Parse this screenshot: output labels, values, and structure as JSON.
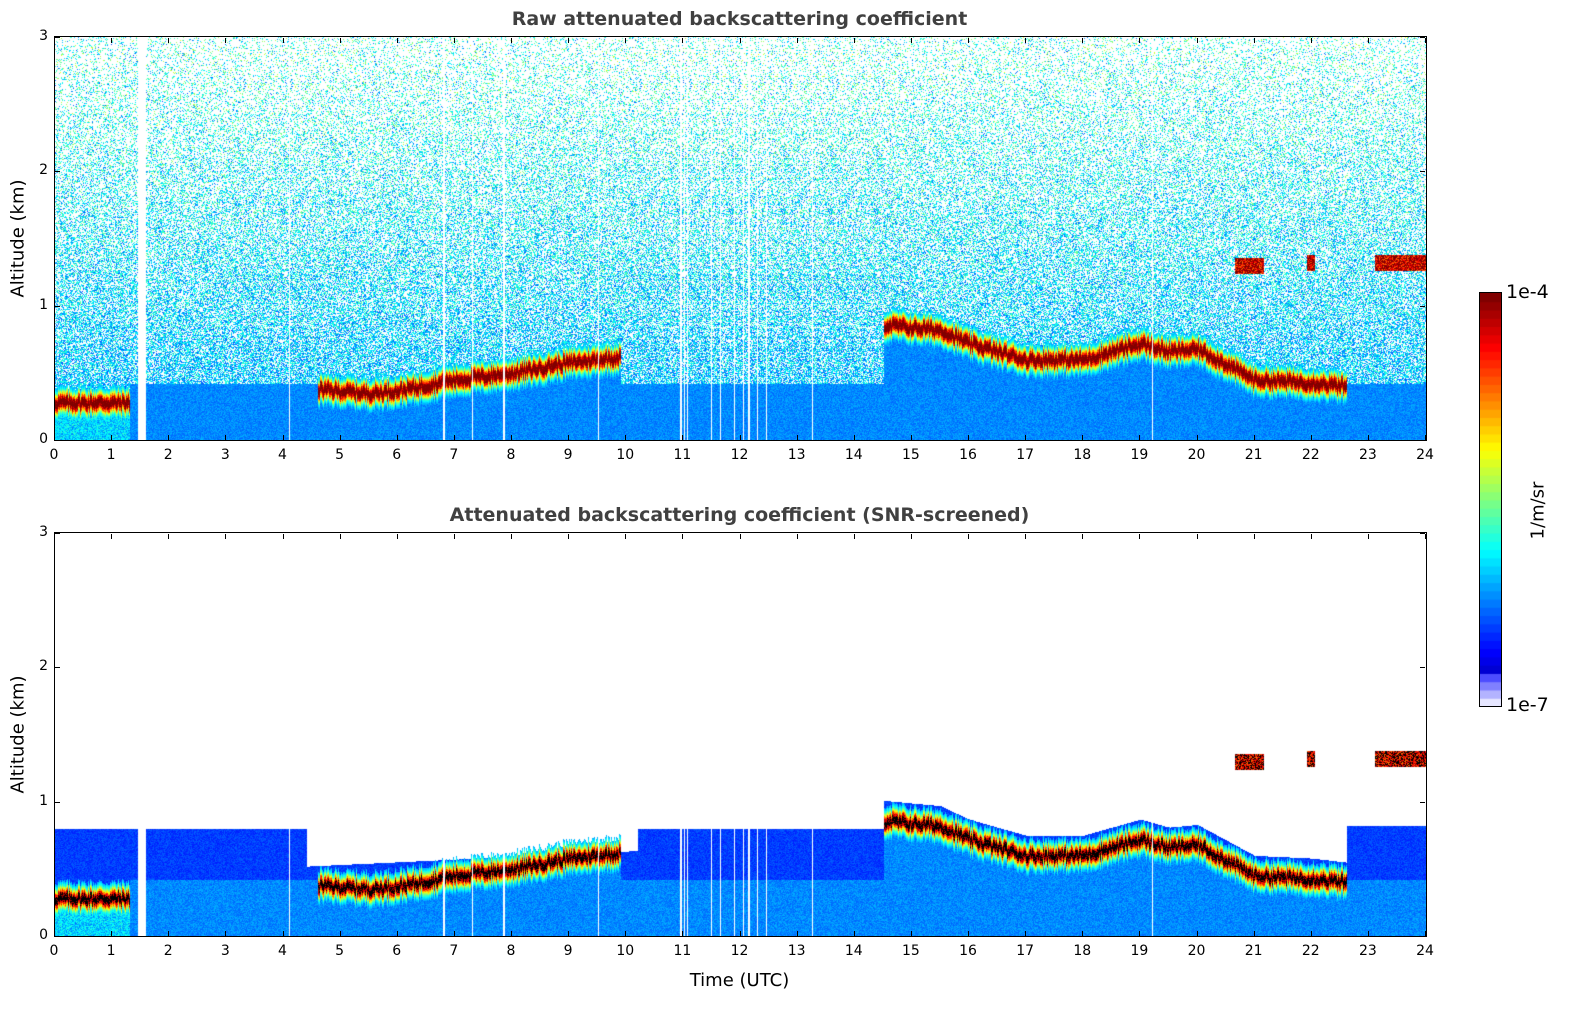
{
  "chart_data": [
    {
      "type": "heatmap",
      "title": "Raw attenuated backscattering coefficient",
      "xlabel": "",
      "ylabel": "Altitude (km)",
      "xlim": [
        0,
        24
      ],
      "ylim": [
        0,
        3
      ],
      "xticks": [
        "0",
        "1",
        "2",
        "3",
        "4",
        "5",
        "6",
        "7",
        "8",
        "9",
        "10",
        "11",
        "12",
        "13",
        "14",
        "15",
        "16",
        "17",
        "18",
        "19",
        "20",
        "21",
        "22",
        "23",
        "24"
      ],
      "yticks": [
        "0",
        "1",
        "2",
        "3"
      ],
      "screened": false
    },
    {
      "type": "heatmap",
      "title": "Attenuated backscattering coefficient (SNR-screened)",
      "xlabel": "Time (UTC)",
      "ylabel": "Altitude (km)",
      "xlim": [
        0,
        24
      ],
      "ylim": [
        0,
        3
      ],
      "xticks": [
        "0",
        "1",
        "2",
        "3",
        "4",
        "5",
        "6",
        "7",
        "8",
        "9",
        "10",
        "11",
        "12",
        "13",
        "14",
        "15",
        "16",
        "17",
        "18",
        "19",
        "20",
        "21",
        "22",
        "23",
        "24"
      ],
      "yticks": [
        "0",
        "1",
        "2",
        "3"
      ],
      "screened": true
    }
  ],
  "colorbar": {
    "label": "1/m/sr",
    "min_label": "1e-7",
    "max_label": "1e-4",
    "scale": "log",
    "colormap": "jet"
  },
  "features": {
    "layer_top_km": [
      [
        0,
        0.28
      ],
      [
        1.3,
        0.28
      ],
      [
        4.6,
        0.38
      ],
      [
        5.5,
        0.35
      ],
      [
        6,
        0.37
      ],
      [
        7,
        0.45
      ],
      [
        8,
        0.5
      ],
      [
        9,
        0.58
      ],
      [
        9.9,
        0.62
      ],
      [
        14.5,
        0.86
      ],
      [
        15.5,
        0.82
      ],
      [
        16,
        0.72
      ],
      [
        17,
        0.6
      ],
      [
        18,
        0.6
      ],
      [
        19,
        0.72
      ],
      [
        19.5,
        0.66
      ],
      [
        20,
        0.68
      ],
      [
        21,
        0.45
      ],
      [
        22,
        0.43
      ],
      [
        22.6,
        0.4
      ]
    ],
    "layer_segments_h": [
      [
        0,
        1.3
      ],
      [
        4.6,
        9.9
      ],
      [
        14.5,
        22.6
      ]
    ],
    "upper_clouds": [
      [
        20.65,
        21.15,
        1.3
      ],
      [
        21.9,
        22.05,
        1.32
      ],
      [
        23.1,
        24,
        1.32
      ]
    ],
    "data_gaps_h": [
      [
        1.45,
        1.58
      ],
      [
        4.09,
        4.11
      ],
      [
        6.79,
        6.81
      ],
      [
        7.29,
        7.31
      ],
      [
        7.84,
        7.86
      ],
      [
        9.49,
        9.51
      ],
      [
        10.93,
        10.97
      ],
      [
        11.0,
        11.02
      ],
      [
        11.05,
        11.07
      ],
      [
        11.48,
        11.5
      ],
      [
        11.63,
        11.65
      ],
      [
        11.88,
        11.9
      ],
      [
        12.03,
        12.05
      ],
      [
        12.13,
        12.15
      ],
      [
        12.28,
        12.3
      ],
      [
        12.43,
        12.45
      ],
      [
        13.24,
        13.26
      ],
      [
        19.19,
        19.21
      ]
    ]
  }
}
